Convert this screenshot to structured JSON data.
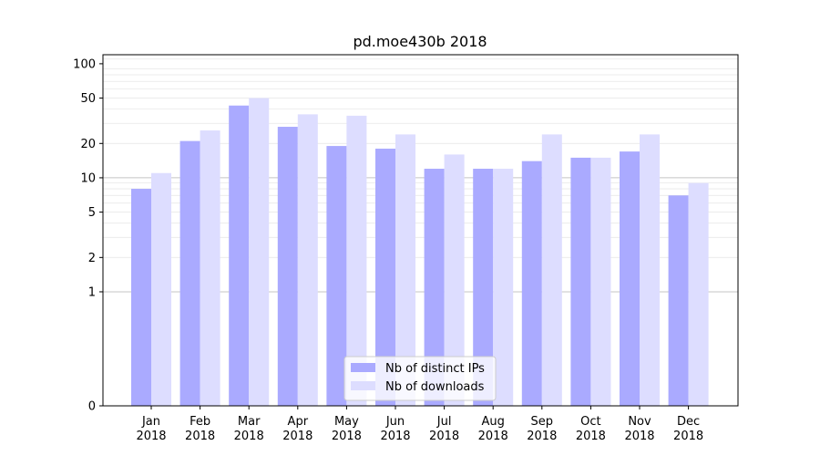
{
  "chart_data": {
    "type": "bar",
    "title": "pd.moe430b 2018",
    "xlabel": "",
    "ylabel": "",
    "yscale": "symlog",
    "ylim": [
      0,
      120
    ],
    "yticks": [
      0,
      1,
      2,
      5,
      10,
      20,
      50,
      100
    ],
    "grid": true,
    "legend_position": "bottom-center",
    "categories": [
      [
        "Jan",
        "2018"
      ],
      [
        "Feb",
        "2018"
      ],
      [
        "Mar",
        "2018"
      ],
      [
        "Apr",
        "2018"
      ],
      [
        "May",
        "2018"
      ],
      [
        "Jun",
        "2018"
      ],
      [
        "Jul",
        "2018"
      ],
      [
        "Aug",
        "2018"
      ],
      [
        "Sep",
        "2018"
      ],
      [
        "Oct",
        "2018"
      ],
      [
        "Nov",
        "2018"
      ],
      [
        "Dec",
        "2018"
      ]
    ],
    "series": [
      {
        "name": "Nb of distinct IPs",
        "color": "#aaaaff",
        "values": [
          8,
          21,
          43,
          28,
          19,
          18,
          12,
          12,
          14,
          15,
          17,
          7
        ]
      },
      {
        "name": "Nb of downloads",
        "color": "#ddddff",
        "values": [
          11,
          26,
          50,
          36,
          35,
          24,
          16,
          12,
          24,
          15,
          24,
          9
        ]
      }
    ]
  }
}
